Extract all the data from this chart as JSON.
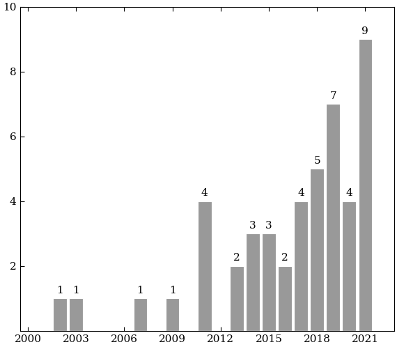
{
  "years": [
    2002,
    2003,
    2007,
    2009,
    2011,
    2013,
    2014,
    2015,
    2016,
    2017,
    2018,
    2019,
    2020,
    2021
  ],
  "values": [
    1,
    1,
    1,
    1,
    4,
    2,
    3,
    3,
    2,
    4,
    5,
    7,
    4,
    9
  ],
  "bar_color": "#999999",
  "bar_edge_color": "#ffffff",
  "ylim": [
    0,
    10
  ],
  "yticks": [
    2,
    4,
    6,
    8,
    10
  ],
  "xticks": [
    2000,
    2003,
    2006,
    2009,
    2012,
    2015,
    2018,
    2021
  ],
  "xlim": [
    1999.5,
    2022.8
  ],
  "label_fontsize": 11,
  "tick_fontsize": 11,
  "bar_width": 0.85
}
